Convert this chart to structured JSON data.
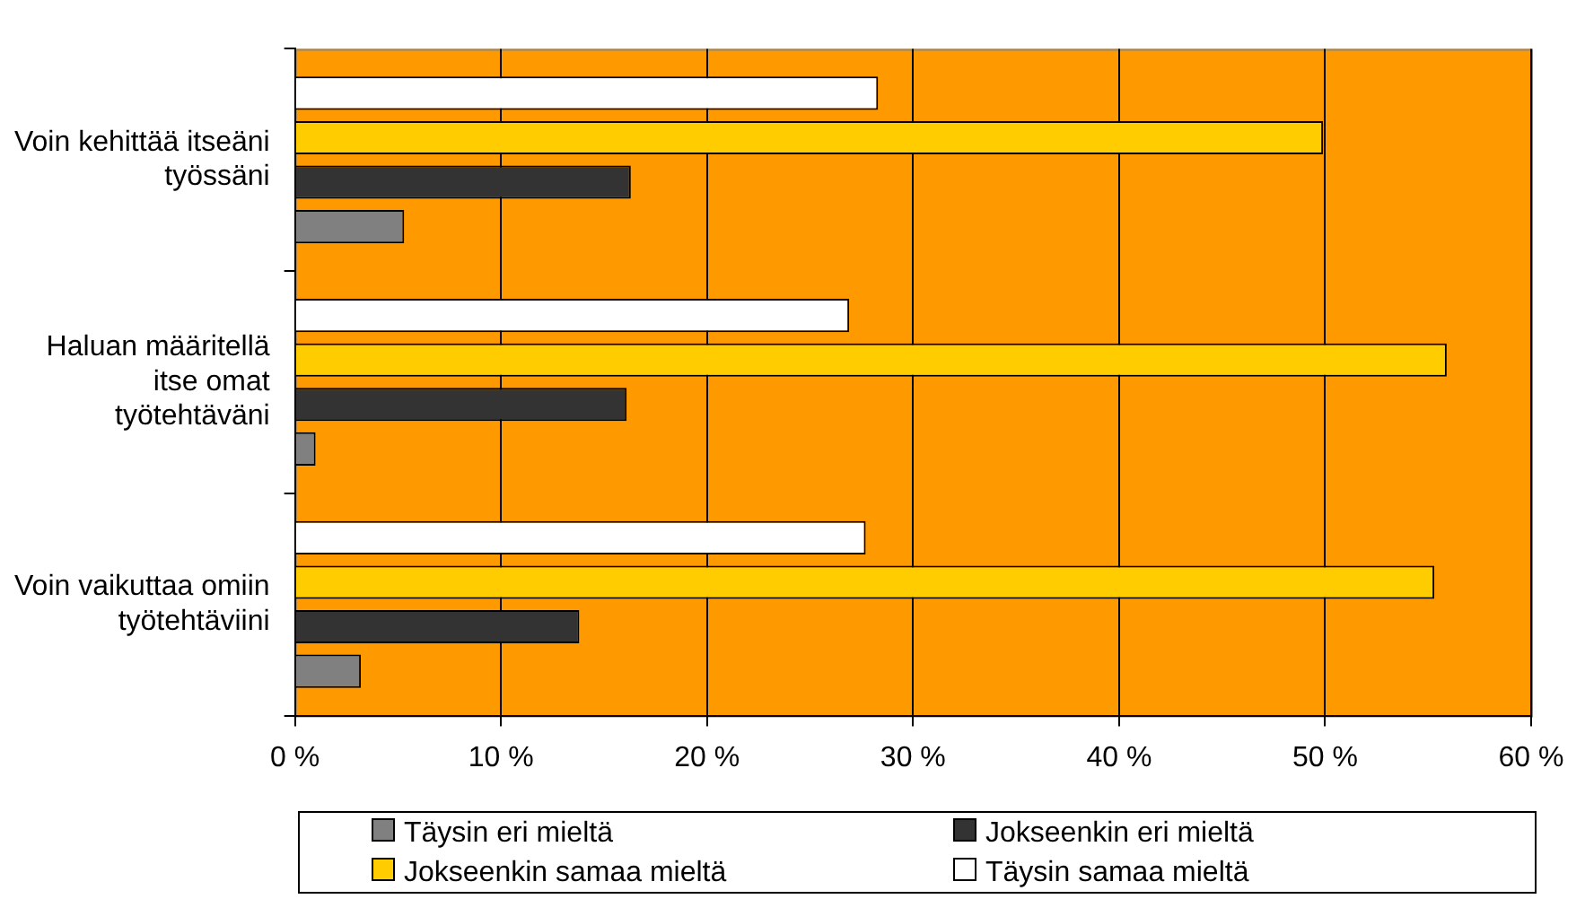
{
  "chart_data": {
    "type": "bar",
    "orientation": "horizontal",
    "categories": [
      "Voin kehittää itseäni työssäni",
      "Haluan määritellä itse omat työtehtäväni",
      "Voin vaikuttaa omiin työtehtäviini"
    ],
    "series": [
      {
        "name": "Täysin eri mieltä",
        "color": "#808080",
        "values": [
          5.3,
          1.0,
          3.2
        ]
      },
      {
        "name": "Jokseenkin eri mieltä",
        "color": "#333333",
        "values": [
          16.3,
          16.1,
          13.8
        ]
      },
      {
        "name": "Jokseenkin samaa mieltä",
        "color": "#ffcc00",
        "values": [
          49.9,
          55.9,
          55.3
        ]
      },
      {
        "name": "Täysin samaa mieltä",
        "color": "#ffffff",
        "values": [
          28.3,
          26.9,
          27.7
        ]
      }
    ],
    "xlim": [
      0,
      60
    ],
    "xticks": [
      {
        "value": 0,
        "label": "0 %"
      },
      {
        "value": 10,
        "label": "10 %"
      },
      {
        "value": 20,
        "label": "20 %"
      },
      {
        "value": 30,
        "label": "30 %"
      },
      {
        "value": 40,
        "label": "40 %"
      },
      {
        "value": 50,
        "label": "50 %"
      },
      {
        "value": 60,
        "label": "60 %"
      }
    ],
    "grid": "x",
    "legend": "bottom"
  }
}
